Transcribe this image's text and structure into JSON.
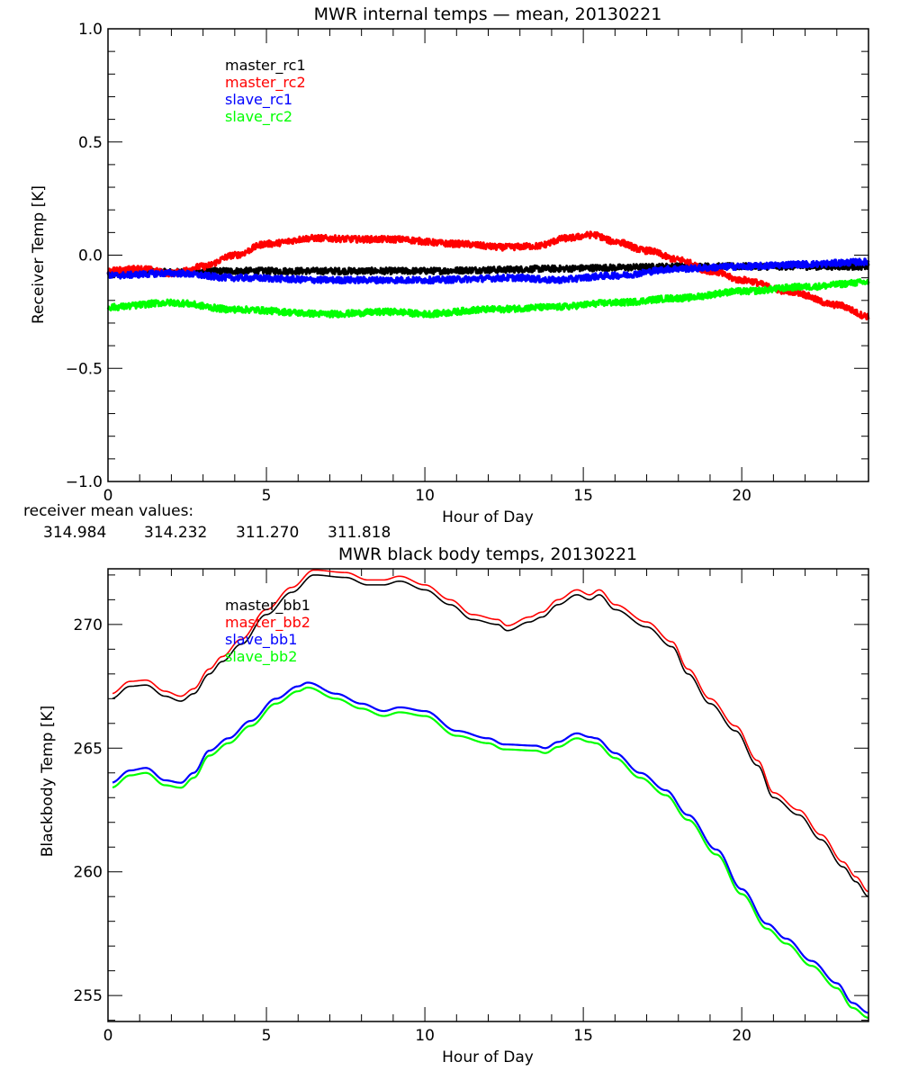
{
  "chart_data": [
    {
      "type": "line",
      "title": "MWR internal temps — mean, 20130221",
      "xlabel": "Hour of Day",
      "ylabel": "Receiver Temp [K]",
      "xlim": [
        0,
        24
      ],
      "ylim": [
        -1.0,
        1.0
      ],
      "xticks": [
        0,
        5,
        10,
        15,
        20
      ],
      "xtick_labels": [
        "0",
        "5",
        "10",
        "15",
        "20"
      ],
      "yticks": [
        -1.0,
        -0.5,
        0.0,
        0.5,
        1.0
      ],
      "ytick_labels": [
        "−1.0",
        "−0.5",
        "0.0",
        "0.5",
        "1.0"
      ],
      "x_minor_step": 1,
      "y_minor_step": 0.1,
      "grid": false,
      "legend_position": "top-left",
      "line_style": "noisy",
      "series": [
        {
          "name": "master_rc1",
          "color": "#000000",
          "x": [
            0,
            1,
            2,
            4,
            6,
            8,
            10,
            12,
            14,
            16,
            18,
            20,
            22,
            24
          ],
          "y": [
            -0.08,
            -0.075,
            -0.075,
            -0.07,
            -0.07,
            -0.07,
            -0.07,
            -0.065,
            -0.06,
            -0.055,
            -0.05,
            -0.05,
            -0.05,
            -0.05
          ]
        },
        {
          "name": "master_rc2",
          "color": "#ff0000",
          "x": [
            0,
            1,
            2,
            3,
            4,
            5,
            6.5,
            8,
            9,
            11,
            12.5,
            13.5,
            14.5,
            15.3,
            16,
            17,
            18,
            19,
            20,
            21.5,
            23,
            24
          ],
          "y": [
            -0.07,
            -0.06,
            -0.08,
            -0.05,
            0.0,
            0.05,
            0.075,
            0.07,
            0.07,
            0.05,
            0.035,
            0.04,
            0.075,
            0.09,
            0.06,
            0.02,
            -0.02,
            -0.07,
            -0.11,
            -0.16,
            -0.22,
            -0.27
          ]
        },
        {
          "name": "slave_rc1",
          "color": "#0000ff",
          "x": [
            0,
            2,
            4,
            7,
            10,
            13,
            14,
            16,
            18,
            20,
            22,
            24
          ],
          "y": [
            -0.09,
            -0.08,
            -0.1,
            -0.11,
            -0.11,
            -0.1,
            -0.11,
            -0.09,
            -0.06,
            -0.05,
            -0.04,
            -0.03
          ]
        },
        {
          "name": "slave_rc2",
          "color": "#00ff00",
          "x": [
            0,
            2,
            4,
            7,
            9,
            10,
            12,
            14,
            16,
            18,
            20,
            22,
            24
          ],
          "y": [
            -0.23,
            -0.21,
            -0.24,
            -0.26,
            -0.25,
            -0.26,
            -0.24,
            -0.23,
            -0.21,
            -0.19,
            -0.16,
            -0.14,
            -0.12
          ]
        }
      ],
      "annotation": {
        "label": "receiver mean values:",
        "values": [
          {
            "text": "314.984",
            "color": "#000000"
          },
          {
            "text": "314.232",
            "color": "#ff0000"
          },
          {
            "text": "311.270",
            "color": "#0000ff"
          },
          {
            "text": "311.818",
            "color": "#00ff00"
          }
        ]
      }
    },
    {
      "type": "line",
      "title": "MWR black body temps, 20130221",
      "xlabel": "Hour of Day",
      "ylabel": "Blackbody Temp [K]",
      "xlim": [
        0,
        24
      ],
      "ylim": [
        253.95,
        272.25
      ],
      "xticks": [
        0,
        5,
        10,
        15,
        20
      ],
      "xtick_labels": [
        "0",
        "5",
        "10",
        "15",
        "20"
      ],
      "yticks": [
        255,
        260,
        265,
        270
      ],
      "ytick_labels": [
        "255",
        "260",
        "265",
        "270"
      ],
      "x_minor_step": 1,
      "y_minor_step": 1,
      "grid": false,
      "legend_position": "top-left",
      "line_style": "smooth",
      "series": [
        {
          "name": "master_bb1",
          "color": "#000000",
          "x": [
            0.1,
            0.7,
            1.2,
            1.8,
            2.3,
            2.7,
            3.2,
            3.6,
            4.2,
            5,
            5.8,
            6.5,
            7.5,
            8.2,
            8.7,
            9.2,
            10,
            10.8,
            11.5,
            12.3,
            12.6,
            13.3,
            13.7,
            14.2,
            14.8,
            15.2,
            15.5,
            16,
            17,
            17.8,
            18.3,
            19,
            19.8,
            20.5,
            21,
            21.8,
            22.5,
            23.2,
            23.6,
            24
          ],
          "y": [
            267.0,
            267.5,
            267.55,
            267.1,
            266.9,
            267.2,
            268.0,
            268.5,
            269.2,
            270.4,
            271.3,
            272.0,
            271.9,
            271.6,
            271.6,
            271.75,
            271.4,
            270.8,
            270.2,
            270.0,
            269.75,
            270.1,
            270.3,
            270.8,
            271.2,
            271.0,
            271.2,
            270.6,
            269.9,
            269.1,
            268.0,
            266.8,
            265.7,
            264.3,
            263.0,
            262.3,
            261.3,
            260.2,
            259.6,
            259.0
          ]
        },
        {
          "name": "master_bb2",
          "color": "#ff0000",
          "x": [
            0.1,
            0.7,
            1.2,
            1.8,
            2.3,
            2.7,
            3.2,
            3.6,
            4.2,
            5,
            5.8,
            6.5,
            7.5,
            8.2,
            8.7,
            9.2,
            10,
            10.8,
            11.5,
            12.3,
            12.6,
            13.3,
            13.7,
            14.2,
            14.8,
            15.2,
            15.5,
            16,
            17,
            17.8,
            18.3,
            19,
            19.8,
            20.5,
            21,
            21.8,
            22.5,
            23.2,
            23.6,
            24
          ],
          "y": [
            267.2,
            267.7,
            267.75,
            267.3,
            267.1,
            267.4,
            268.2,
            268.7,
            269.4,
            270.6,
            271.5,
            272.2,
            272.1,
            271.8,
            271.8,
            271.95,
            271.6,
            271.0,
            270.4,
            270.2,
            269.95,
            270.3,
            270.5,
            271.0,
            271.4,
            271.2,
            271.4,
            270.8,
            270.1,
            269.3,
            268.2,
            267.0,
            265.9,
            264.5,
            263.2,
            262.5,
            261.5,
            260.4,
            259.8,
            259.2
          ]
        },
        {
          "name": "slave_bb1",
          "color": "#0000ff",
          "x": [
            0.1,
            0.7,
            1.2,
            1.8,
            2.3,
            2.7,
            3.2,
            3.8,
            4.5,
            5.3,
            6,
            6.3,
            7.2,
            8,
            8.7,
            9.2,
            10,
            11,
            12,
            12.5,
            13.5,
            13.8,
            14.2,
            14.8,
            15.2,
            15.4,
            16,
            16.8,
            17.6,
            18.3,
            19.2,
            20,
            20.8,
            21.4,
            22.2,
            23,
            23.5,
            24
          ],
          "y": [
            263.6,
            264.1,
            264.2,
            263.7,
            263.6,
            264.0,
            264.9,
            265.4,
            266.1,
            267.0,
            267.5,
            267.65,
            267.2,
            266.8,
            266.5,
            266.65,
            266.5,
            265.7,
            265.4,
            265.15,
            265.1,
            265.0,
            265.25,
            265.6,
            265.45,
            265.4,
            264.8,
            264.0,
            263.3,
            262.3,
            260.9,
            259.3,
            257.9,
            257.3,
            256.4,
            255.5,
            254.7,
            254.3
          ]
        },
        {
          "name": "slave_bb2",
          "color": "#00ff00",
          "x": [
            0.1,
            0.7,
            1.2,
            1.8,
            2.3,
            2.7,
            3.2,
            3.8,
            4.5,
            5.3,
            6,
            6.3,
            7.2,
            8,
            8.7,
            9.2,
            10,
            11,
            12,
            12.5,
            13.5,
            13.8,
            14.2,
            14.8,
            15.2,
            15.4,
            16,
            16.8,
            17.6,
            18.3,
            19.2,
            20,
            20.8,
            21.4,
            22.2,
            23,
            23.5,
            24
          ],
          "y": [
            263.4,
            263.9,
            264.0,
            263.5,
            263.4,
            263.8,
            264.7,
            265.2,
            265.9,
            266.8,
            267.3,
            267.45,
            267.0,
            266.6,
            266.3,
            266.45,
            266.3,
            265.5,
            265.2,
            264.95,
            264.9,
            264.8,
            265.05,
            265.4,
            265.25,
            265.2,
            264.6,
            263.8,
            263.1,
            262.1,
            260.7,
            259.1,
            257.7,
            257.1,
            256.2,
            255.3,
            254.5,
            254.1
          ]
        }
      ]
    }
  ]
}
